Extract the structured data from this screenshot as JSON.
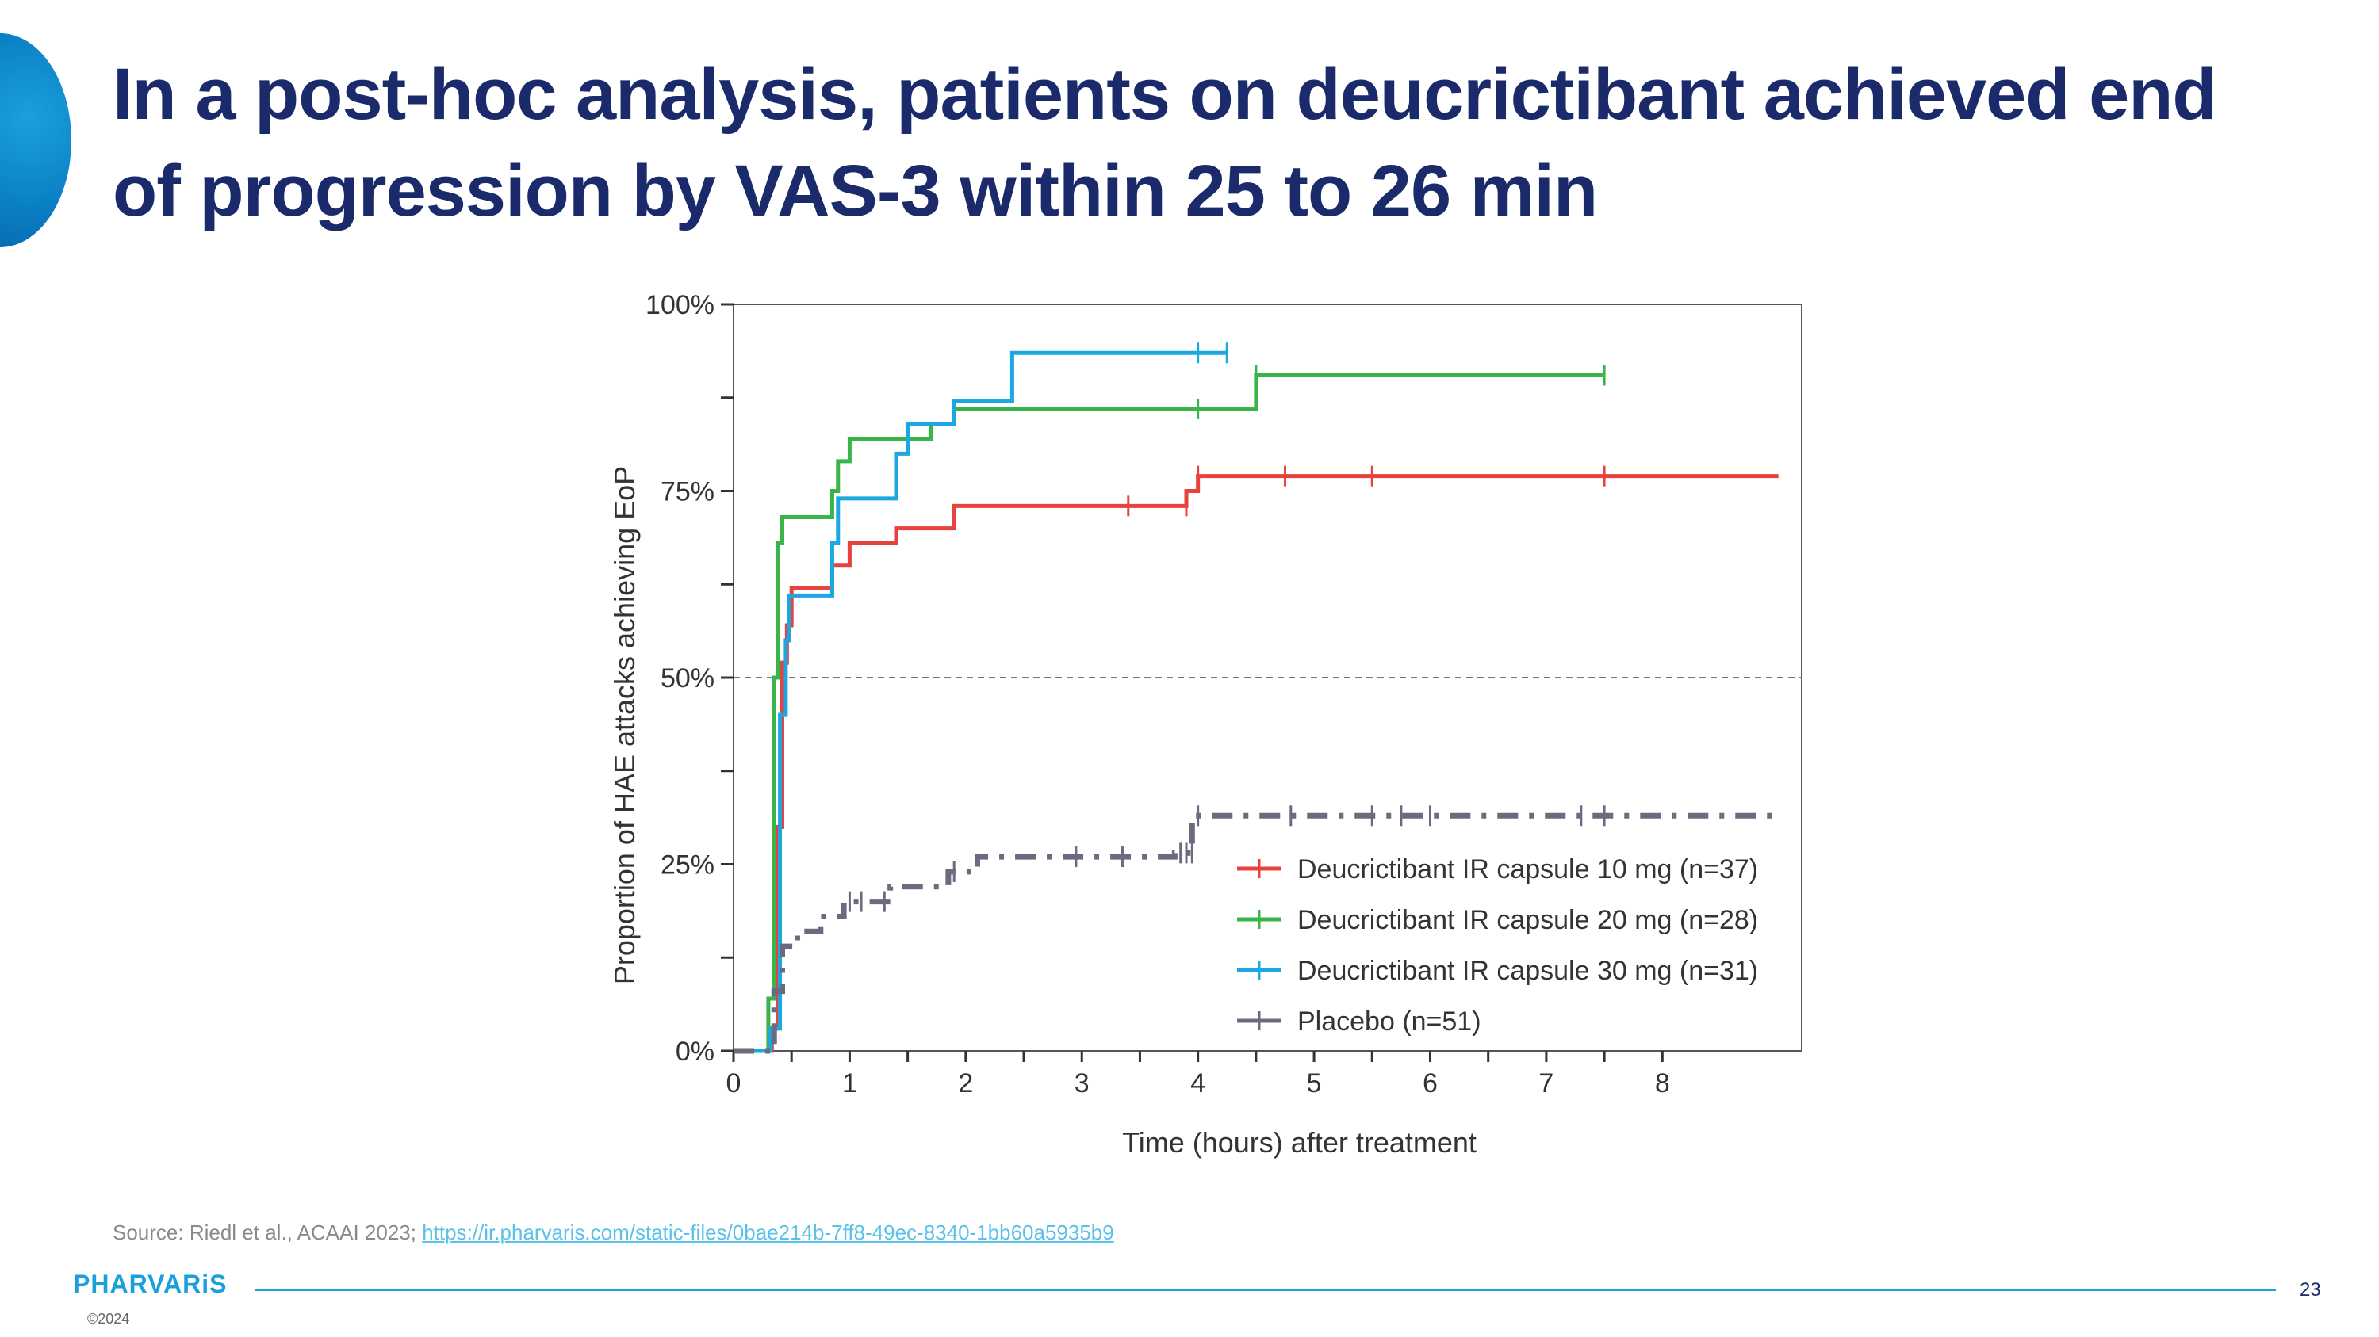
{
  "slide": {
    "title": "In a post-hoc analysis, patients on deucrictibant achieved end of progression by VAS-3 within 25 to 26 min",
    "source_prefix": "Source: Riedl et al., ACAAI 2023; ",
    "source_link": "https://ir.pharvaris.com/static-files/0bae214b-7ff8-49ec-8340-1bb60a5935b9",
    "logo": "PHARVARiS",
    "copyright": "©2024",
    "page_number": "23"
  },
  "chart_data": {
    "type": "line",
    "step": true,
    "xlabel": "Time (hours) after treatment",
    "ylabel": "Proportion of HAE attacks achieving EoP",
    "xlim": [
      0,
      9.2
    ],
    "ylim": [
      0,
      100
    ],
    "x_ticks": [
      0,
      1,
      2,
      3,
      4,
      5,
      6,
      7,
      8
    ],
    "y_ticks": [
      0,
      25,
      50,
      75,
      100
    ],
    "y_tick_labels": [
      "0%",
      "25%",
      "50%",
      "75%",
      "100%"
    ],
    "reference_line_y": 50,
    "legend_position": "lower-right",
    "series": [
      {
        "name": "Deucrictibant IR capsule 10 mg (n=37)",
        "color": "#e8423f",
        "style": "solid",
        "x": [
          0,
          0.33,
          0.38,
          0.42,
          0.46,
          0.5,
          0.85,
          1.0,
          1.4,
          1.9,
          3.9,
          4.0,
          9.0
        ],
        "y": [
          0,
          3,
          30,
          52,
          57,
          62,
          65,
          68,
          70,
          73,
          75,
          77,
          77
        ],
        "censored_x": [
          3.4,
          3.9,
          4.0,
          4.75,
          5.5,
          7.5
        ],
        "censored_y": [
          73,
          73,
          77,
          77,
          77,
          77
        ]
      },
      {
        "name": "Deucrictibant IR capsule 20 mg (n=28)",
        "color": "#38b549",
        "style": "solid",
        "x": [
          0,
          0.3,
          0.35,
          0.38,
          0.42,
          0.85,
          0.9,
          1.0,
          1.7,
          1.9,
          4.5,
          7.5
        ],
        "y": [
          0,
          7,
          50,
          68,
          71.5,
          75,
          79,
          82,
          84,
          86,
          90.5,
          90.5
        ],
        "censored_x": [
          4.0,
          4.5,
          7.5
        ],
        "censored_y": [
          86,
          90.5,
          90.5
        ]
      },
      {
        "name": "Deucrictibant IR capsule 30 mg (n=31)",
        "color": "#1ba8e0",
        "style": "solid",
        "x": [
          0,
          0.32,
          0.4,
          0.45,
          0.48,
          0.85,
          0.9,
          1.4,
          1.5,
          1.9,
          2.4,
          4.25
        ],
        "y": [
          0,
          3,
          45,
          55,
          61,
          68,
          74,
          80,
          84,
          87,
          93.5,
          93.5
        ],
        "censored_x": [
          4.0,
          4.25
        ],
        "censored_y": [
          93.5,
          93.5
        ]
      },
      {
        "name": "Placebo (n=51)",
        "color": "#6b6b80",
        "style": "dashdot",
        "x": [
          0,
          0.35,
          0.42,
          0.55,
          0.75,
          0.95,
          1.35,
          1.85,
          2.1,
          3.0,
          3.8,
          3.95,
          9.0
        ],
        "y": [
          0,
          8,
          14,
          16,
          18,
          20,
          22,
          24,
          26,
          26,
          26.5,
          31.5,
          31.5
        ],
        "censored_x": [
          1.0,
          1.1,
          1.3,
          1.9,
          2.95,
          3.35,
          3.85,
          3.9,
          3.95,
          4.0,
          4.8,
          5.5,
          5.75,
          6.0,
          7.3,
          7.5
        ],
        "censored_y": [
          20,
          20,
          20,
          24,
          26,
          26,
          26.5,
          26.5,
          26.5,
          31.5,
          31.5,
          31.5,
          31.5,
          31.5,
          31.5,
          31.5
        ]
      }
    ]
  }
}
